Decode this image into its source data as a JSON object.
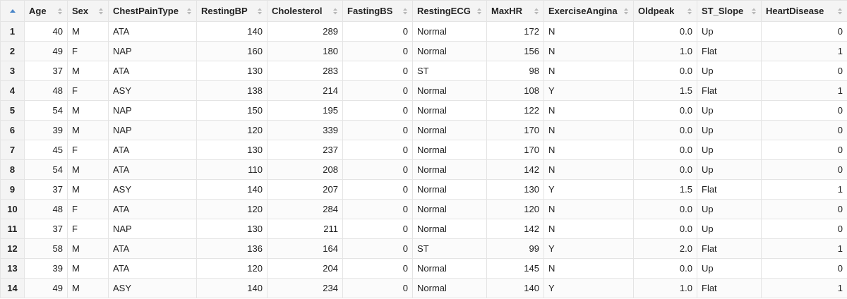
{
  "table": {
    "columns": [
      "Age",
      "Sex",
      "ChestPainType",
      "RestingBP",
      "Cholesterol",
      "FastingBS",
      "RestingECG",
      "MaxHR",
      "ExerciseAngina",
      "Oldpeak",
      "ST_Slope",
      "HeartDisease"
    ],
    "align": [
      "num",
      "txt",
      "txt",
      "num",
      "num",
      "num",
      "txt",
      "num",
      "txt",
      "num",
      "txt",
      "num"
    ],
    "rows": [
      {
        "n": "1",
        "cells": [
          "40",
          "M",
          "ATA",
          "140",
          "289",
          "0",
          "Normal",
          "172",
          "N",
          "0.0",
          "Up",
          "0"
        ]
      },
      {
        "n": "2",
        "cells": [
          "49",
          "F",
          "NAP",
          "160",
          "180",
          "0",
          "Normal",
          "156",
          "N",
          "1.0",
          "Flat",
          "1"
        ]
      },
      {
        "n": "3",
        "cells": [
          "37",
          "M",
          "ATA",
          "130",
          "283",
          "0",
          "ST",
          "98",
          "N",
          "0.0",
          "Up",
          "0"
        ]
      },
      {
        "n": "4",
        "cells": [
          "48",
          "F",
          "ASY",
          "138",
          "214",
          "0",
          "Normal",
          "108",
          "Y",
          "1.5",
          "Flat",
          "1"
        ]
      },
      {
        "n": "5",
        "cells": [
          "54",
          "M",
          "NAP",
          "150",
          "195",
          "0",
          "Normal",
          "122",
          "N",
          "0.0",
          "Up",
          "0"
        ]
      },
      {
        "n": "6",
        "cells": [
          "39",
          "M",
          "NAP",
          "120",
          "339",
          "0",
          "Normal",
          "170",
          "N",
          "0.0",
          "Up",
          "0"
        ]
      },
      {
        "n": "7",
        "cells": [
          "45",
          "F",
          "ATA",
          "130",
          "237",
          "0",
          "Normal",
          "170",
          "N",
          "0.0",
          "Up",
          "0"
        ]
      },
      {
        "n": "8",
        "cells": [
          "54",
          "M",
          "ATA",
          "110",
          "208",
          "0",
          "Normal",
          "142",
          "N",
          "0.0",
          "Up",
          "0"
        ]
      },
      {
        "n": "9",
        "cells": [
          "37",
          "M",
          "ASY",
          "140",
          "207",
          "0",
          "Normal",
          "130",
          "Y",
          "1.5",
          "Flat",
          "1"
        ]
      },
      {
        "n": "10",
        "cells": [
          "48",
          "F",
          "ATA",
          "120",
          "284",
          "0",
          "Normal",
          "120",
          "N",
          "0.0",
          "Up",
          "0"
        ]
      },
      {
        "n": "11",
        "cells": [
          "37",
          "F",
          "NAP",
          "130",
          "211",
          "0",
          "Normal",
          "142",
          "N",
          "0.0",
          "Up",
          "0"
        ]
      },
      {
        "n": "12",
        "cells": [
          "58",
          "M",
          "ATA",
          "136",
          "164",
          "0",
          "ST",
          "99",
          "Y",
          "2.0",
          "Flat",
          "1"
        ]
      },
      {
        "n": "13",
        "cells": [
          "39",
          "M",
          "ATA",
          "120",
          "204",
          "0",
          "Normal",
          "145",
          "N",
          "0.0",
          "Up",
          "0"
        ]
      },
      {
        "n": "14",
        "cells": [
          "49",
          "M",
          "ASY",
          "140",
          "234",
          "0",
          "Normal",
          "140",
          "Y",
          "1.0",
          "Flat",
          "1"
        ]
      }
    ]
  },
  "icons": {
    "corner": "sort-up-icon",
    "column_sort": "sort-toggle-icon"
  },
  "colors": {
    "header_bg": "#f4f4f4",
    "grid_line": "#e4e4e4",
    "sort_active": "#4a86c8",
    "sort_idle": "#b8b8b8"
  }
}
